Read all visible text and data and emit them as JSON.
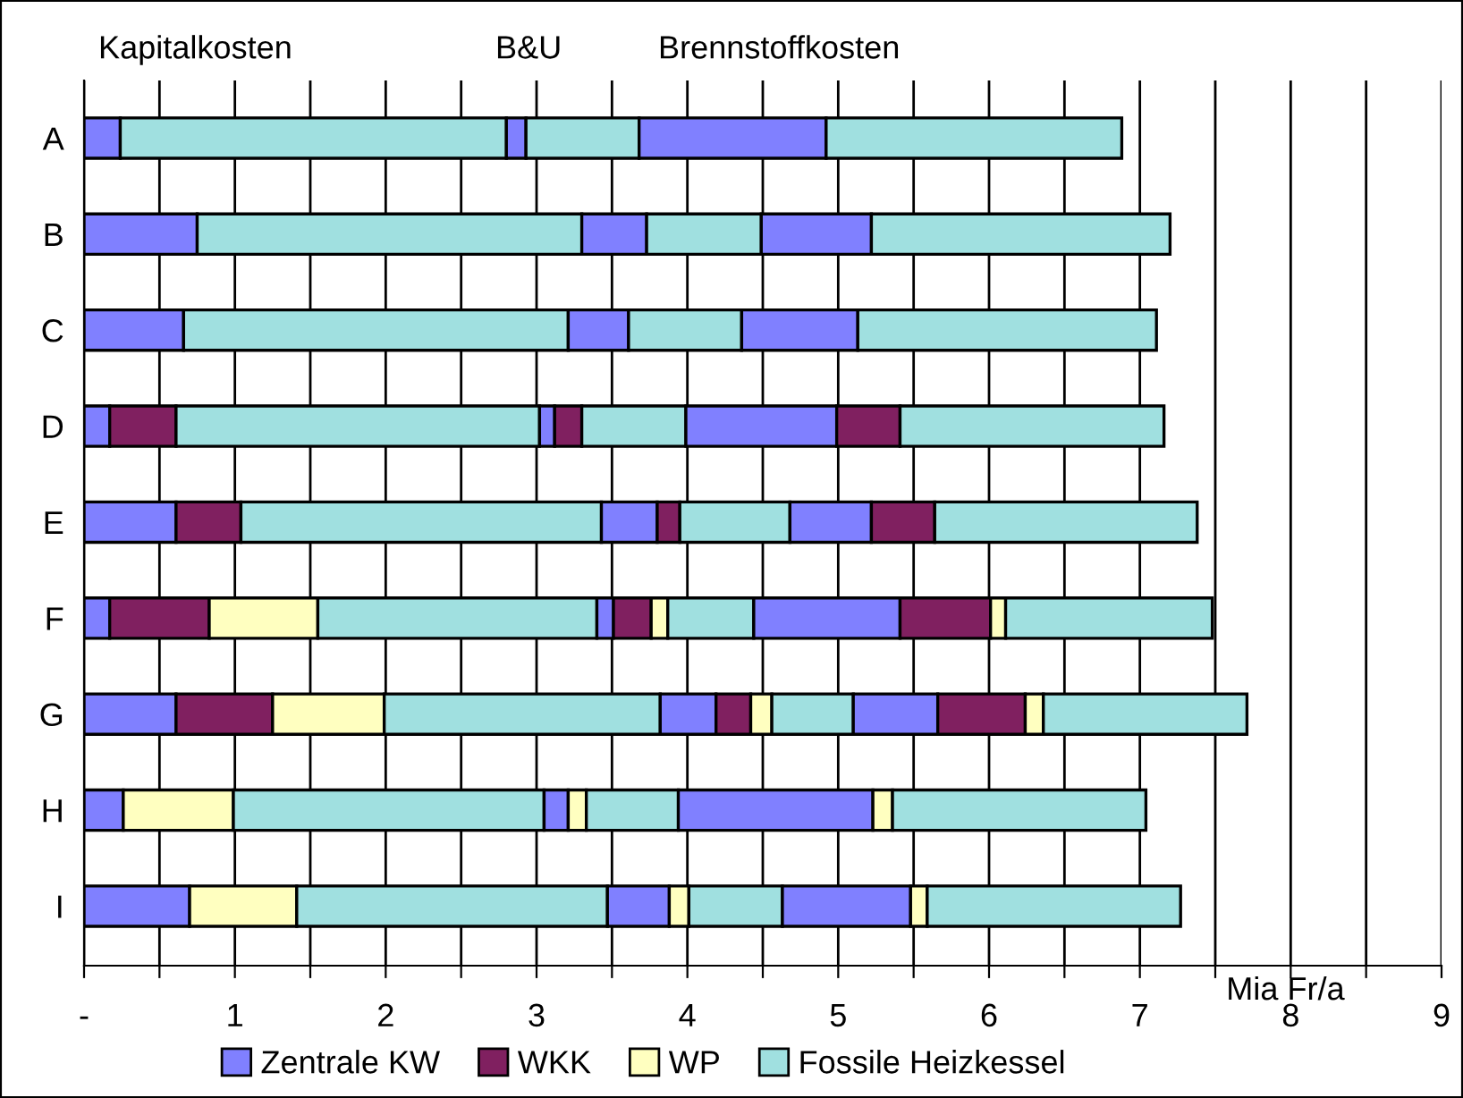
{
  "chart_data": {
    "type": "bar",
    "orientation": "horizontal",
    "stacked": true,
    "annotations": [
      "Kapitalkosten",
      "B&U",
      "Brennstoffkosten"
    ],
    "xlabel": "Mia Fr/a",
    "categories": [
      "A",
      "B",
      "C",
      "D",
      "E",
      "F",
      "G",
      "H",
      "I"
    ],
    "series": [
      {
        "name": "Zentrale KW",
        "color": "#8080ff",
        "values": [
          0.24,
          0.75,
          0.66,
          0.17,
          0.61,
          0.17,
          0.61,
          0.26,
          0.7
        ]
      },
      {
        "name": "WKK",
        "color": "#802060",
        "values": [
          null,
          null,
          null,
          0.44,
          0.43,
          0.66,
          0.64,
          null,
          null
        ]
      },
      {
        "name": "WP",
        "color": "#ffffc0",
        "values": [
          null,
          null,
          null,
          null,
          null,
          0.72,
          0.74,
          0.73,
          0.71
        ]
      },
      {
        "name": "Fossile Heizkessel",
        "color": "#a0e0e0",
        "values": [
          2.56,
          2.55,
          2.55,
          2.41,
          2.39,
          1.85,
          1.83,
          2.06,
          2.06
        ]
      },
      {
        "color": "#8080ff",
        "values": [
          0.13,
          0.43,
          0.4,
          0.1,
          0.37,
          0.11,
          0.37,
          0.16,
          0.41
        ]
      },
      {
        "color": "#802060",
        "values": [
          null,
          null,
          null,
          0.18,
          0.15,
          0.25,
          0.23,
          null,
          null
        ]
      },
      {
        "color": "#ffffc0",
        "values": [
          null,
          null,
          null,
          null,
          null,
          0.11,
          0.14,
          0.12,
          0.13
        ]
      },
      {
        "color": "#a0e0e0",
        "values": [
          0.75,
          0.76,
          0.75,
          0.69,
          0.73,
          0.57,
          0.54,
          0.61,
          0.62
        ]
      },
      {
        "color": "#8080ff",
        "values": [
          1.24,
          0.73,
          0.77,
          1.0,
          0.54,
          0.97,
          0.56,
          1.29,
          0.85
        ]
      },
      {
        "color": "#802060",
        "values": [
          null,
          null,
          null,
          0.42,
          0.42,
          0.6,
          0.58,
          null,
          null
        ]
      },
      {
        "color": "#ffffc0",
        "values": [
          null,
          null,
          null,
          null,
          null,
          0.1,
          0.12,
          0.13,
          0.11
        ]
      },
      {
        "color": "#a0e0e0",
        "values": [
          1.96,
          1.98,
          1.98,
          1.75,
          1.74,
          1.37,
          1.35,
          1.68,
          1.68
        ]
      }
    ],
    "xlim": [
      0,
      9
    ],
    "xticks": [
      {
        "value": 0,
        "label": "-"
      },
      {
        "value": 0.5,
        "label": null
      },
      1,
      {
        "value": 1.5,
        "label": null
      },
      2,
      {
        "value": 2.5,
        "label": null
      },
      3,
      {
        "value": 3.5,
        "label": null
      },
      4,
      {
        "value": 4.5,
        "label": null
      },
      5,
      {
        "value": 5.5,
        "label": null
      },
      6,
      {
        "value": 6.5,
        "label": null
      },
      7,
      {
        "value": 7.5,
        "label": null
      },
      8,
      {
        "value": 8.5,
        "label": null
      },
      9
    ],
    "grid": "x",
    "legend": "bottom"
  }
}
